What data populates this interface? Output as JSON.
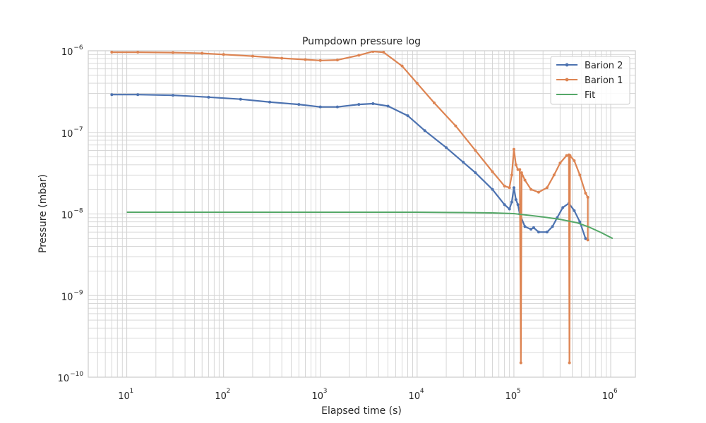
{
  "chart_data": {
    "type": "line",
    "title": "Pumpdown pressure log",
    "xlabel": "Elapsed time (s)",
    "ylabel": "Pressure (mbar)",
    "x_scale": "log",
    "y_scale": "log",
    "xlim": [
      4,
      1800000
    ],
    "ylim": [
      1e-10,
      1e-06
    ],
    "grid": true,
    "legend_position": "top-right",
    "x_ticks": [
      {
        "value": 10,
        "base": "10",
        "exp": "1"
      },
      {
        "value": 100,
        "base": "10",
        "exp": "2"
      },
      {
        "value": 1000,
        "base": "10",
        "exp": "3"
      },
      {
        "value": 10000,
        "base": "10",
        "exp": "4"
      },
      {
        "value": 100000,
        "base": "10",
        "exp": "5"
      },
      {
        "value": 1000000,
        "base": "10",
        "exp": "6"
      }
    ],
    "y_ticks": [
      {
        "value": 1e-10,
        "base": "10",
        "exp": "−10"
      },
      {
        "value": 1e-09,
        "base": "10",
        "exp": "−9"
      },
      {
        "value": 1e-08,
        "base": "10",
        "exp": "−8"
      },
      {
        "value": 1e-07,
        "base": "10",
        "exp": "−7"
      },
      {
        "value": 1e-06,
        "base": "10",
        "exp": "−6"
      }
    ],
    "series": [
      {
        "name": "Barion 2",
        "color": "#4c72b0",
        "markers": true,
        "points": [
          [
            7,
            2.9e-07
          ],
          [
            13,
            2.9e-07
          ],
          [
            30,
            2.85e-07
          ],
          [
            70,
            2.7e-07
          ],
          [
            150,
            2.55e-07
          ],
          [
            300,
            2.35e-07
          ],
          [
            600,
            2.2e-07
          ],
          [
            1000,
            2.05e-07
          ],
          [
            1500,
            2.05e-07
          ],
          [
            2500,
            2.2e-07
          ],
          [
            3500,
            2.25e-07
          ],
          [
            5000,
            2.1e-07
          ],
          [
            8000,
            1.6e-07
          ],
          [
            12000,
            1.05e-07
          ],
          [
            20000,
            6.5e-08
          ],
          [
            30000,
            4.3e-08
          ],
          [
            40000,
            3.2e-08
          ],
          [
            60000,
            2e-08
          ],
          [
            80000,
            1.3e-08
          ],
          [
            90000,
            1.15e-08
          ],
          [
            95000,
            1.4e-08
          ],
          [
            100000,
            2.1e-08
          ],
          [
            105000,
            1.5e-08
          ],
          [
            110000,
            1.3e-08
          ],
          [
            115000,
            1e-08
          ],
          [
            130000,
            7e-09
          ],
          [
            150000,
            6.5e-09
          ],
          [
            160000,
            6.8e-09
          ],
          [
            180000,
            6e-09
          ],
          [
            220000,
            6e-09
          ],
          [
            250000,
            7e-09
          ],
          [
            280000,
            9e-09
          ],
          [
            320000,
            1.2e-08
          ],
          [
            370000,
            1.35e-08
          ],
          [
            420000,
            1.1e-08
          ],
          [
            480000,
            8e-09
          ],
          [
            550000,
            5e-09
          ]
        ]
      },
      {
        "name": "Barion 1",
        "color": "#dd8452",
        "markers": true,
        "points": [
          [
            7,
            9.6e-07
          ],
          [
            13,
            9.6e-07
          ],
          [
            30,
            9.5e-07
          ],
          [
            60,
            9.3e-07
          ],
          [
            100,
            9e-07
          ],
          [
            200,
            8.6e-07
          ],
          [
            400,
            8.1e-07
          ],
          [
            700,
            7.8e-07
          ],
          [
            1000,
            7.6e-07
          ],
          [
            1500,
            7.7e-07
          ],
          [
            2500,
            8.8e-07
          ],
          [
            3500,
            9.8e-07
          ],
          [
            4500,
            9.6e-07
          ],
          [
            7000,
            6.5e-07
          ],
          [
            10000,
            4e-07
          ],
          [
            15000,
            2.3e-07
          ],
          [
            25000,
            1.2e-07
          ],
          [
            40000,
            6e-08
          ],
          [
            60000,
            3.3e-08
          ],
          [
            80000,
            2.2e-08
          ],
          [
            90000,
            2.1e-08
          ],
          [
            95000,
            3e-08
          ],
          [
            100000,
            6.2e-08
          ],
          [
            105000,
            4e-08
          ],
          [
            110000,
            3.5e-08
          ],
          [
            115000,
            3.5e-08
          ],
          [
            118000,
            1.5e-10
          ],
          [
            120000,
            3.2e-08
          ],
          [
            130000,
            2.6e-08
          ],
          [
            150000,
            2e-08
          ],
          [
            180000,
            1.85e-08
          ],
          [
            220000,
            2.1e-08
          ],
          [
            260000,
            3e-08
          ],
          [
            300000,
            4.2e-08
          ],
          [
            350000,
            5.2e-08
          ],
          [
            370000,
            5.3e-08
          ],
          [
            375000,
            1.5e-10
          ],
          [
            380000,
            5.2e-08
          ],
          [
            420000,
            4.5e-08
          ],
          [
            480000,
            3e-08
          ],
          [
            550000,
            1.8e-08
          ],
          [
            580000,
            1.6e-08
          ],
          [
            580001,
            4.8e-09
          ]
        ]
      },
      {
        "name": "Fit",
        "color": "#55a868",
        "markers": false,
        "points": [
          [
            10,
            1.05e-08
          ],
          [
            100,
            1.05e-08
          ],
          [
            1000,
            1.05e-08
          ],
          [
            10000,
            1.05e-08
          ],
          [
            30000,
            1.04e-08
          ],
          [
            60000,
            1.03e-08
          ],
          [
            100000,
            1.01e-08
          ],
          [
            200000,
            9.2e-09
          ],
          [
            300000,
            8.6e-09
          ],
          [
            450000,
            7.8e-09
          ],
          [
            600000,
            6.9e-09
          ],
          [
            800000,
            5.9e-09
          ],
          [
            1050000,
            5e-09
          ]
        ]
      }
    ]
  }
}
